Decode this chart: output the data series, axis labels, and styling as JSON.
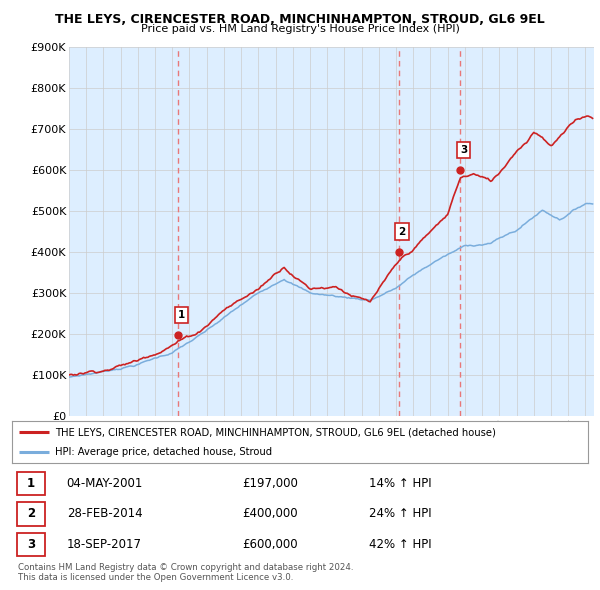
{
  "title": "THE LEYS, CIRENCESTER ROAD, MINCHINHAMPTON, STROUD, GL6 9EL",
  "subtitle": "Price paid vs. HM Land Registry's House Price Index (HPI)",
  "ylim": [
    0,
    900000
  ],
  "yticks": [
    0,
    100000,
    200000,
    300000,
    400000,
    500000,
    600000,
    700000,
    800000,
    900000
  ],
  "ytick_labels": [
    "£0",
    "£100K",
    "£200K",
    "£300K",
    "£400K",
    "£500K",
    "£600K",
    "£700K",
    "£800K",
    "£900K"
  ],
  "sale_dates": [
    2001.34,
    2014.16,
    2017.72
  ],
  "sale_prices": [
    197000,
    400000,
    600000
  ],
  "sale_labels": [
    "1",
    "2",
    "3"
  ],
  "hpi_color": "#7aaddc",
  "price_color": "#cc2222",
  "vline_color": "#e87878",
  "legend_label_price": "THE LEYS, CIRENCESTER ROAD, MINCHINHAMPTON, STROUD, GL6 9EL (detached house)",
  "legend_label_hpi": "HPI: Average price, detached house, Stroud",
  "table_rows": [
    [
      "1",
      "04-MAY-2001",
      "£197,000",
      "14% ↑ HPI"
    ],
    [
      "2",
      "28-FEB-2014",
      "£400,000",
      "24% ↑ HPI"
    ],
    [
      "3",
      "18-SEP-2017",
      "£600,000",
      "42% ↑ HPI"
    ]
  ],
  "footnote": "Contains HM Land Registry data © Crown copyright and database right 2024.\nThis data is licensed under the Open Government Licence v3.0.",
  "bg_color": "#ffffff",
  "grid_color": "#cccccc",
  "chart_bg": "#ddeeff"
}
